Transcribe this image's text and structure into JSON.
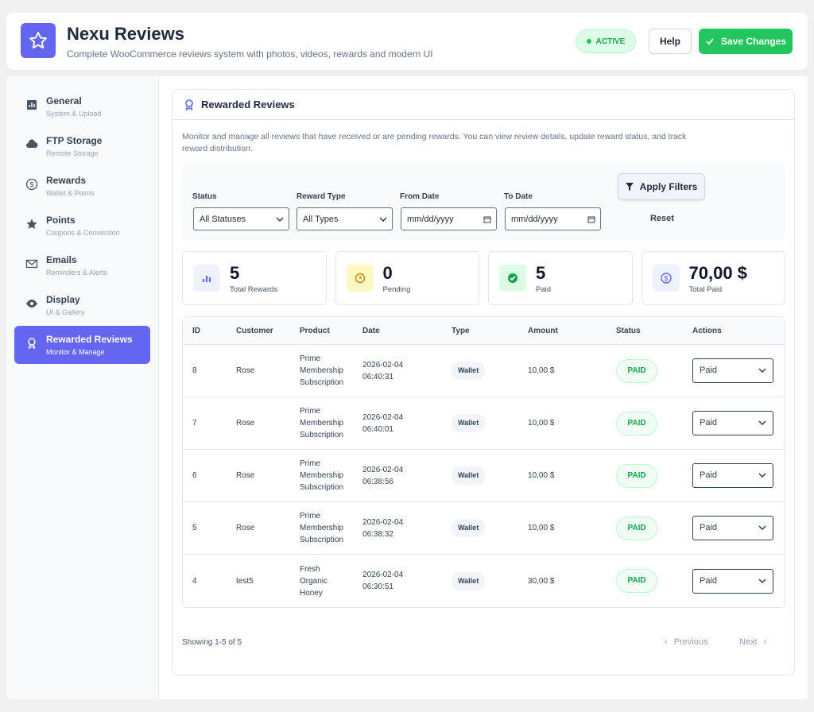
{
  "header": {
    "title": "Nexu Reviews",
    "subtitle": "Complete WooCommerce reviews system with photos, videos, rewards and modern UI",
    "status": "ACTIVE",
    "help": "Help",
    "save": "Save Changes"
  },
  "sidebar": [
    {
      "label": "General",
      "sub": "System & Upload"
    },
    {
      "label": "FTP Storage",
      "sub": "Remote Storage"
    },
    {
      "label": "Rewards",
      "sub": "Wallet & Points"
    },
    {
      "label": "Points",
      "sub": "Coupons & Conversion"
    },
    {
      "label": "Emails",
      "sub": "Reminders & Alerts"
    },
    {
      "label": "Display",
      "sub": "UI & Gallery"
    },
    {
      "label": "Rewarded Reviews",
      "sub": "Monitor & Manage"
    }
  ],
  "panel": {
    "title": "Rewarded Reviews",
    "description": "Monitor and manage all reviews that have received or are pending rewards. You can view review details, update reward status, and track reward distribution.",
    "filters": {
      "status_label": "Status",
      "status_value": "All Statuses",
      "type_label": "Reward Type",
      "type_value": "All Types",
      "from_label": "From Date",
      "from_value": "mm/dd/yyyy",
      "to_label": "To Date",
      "to_value": "mm/dd/yyyy",
      "apply": "Apply Filters",
      "reset": "Reset"
    },
    "stats": [
      {
        "value": 5,
        "label": "Total Rewards"
      },
      {
        "value": 0,
        "label": "Pending"
      },
      {
        "value": 5,
        "label": "Paid"
      },
      {
        "value": "70,00 $",
        "label": "Total Paid"
      }
    ],
    "table": {
      "columns": [
        "ID",
        "Customer",
        "Product",
        "Date",
        "Type",
        "Amount",
        "Status",
        "Actions"
      ],
      "rows": [
        [
          8,
          "Rose",
          "Prime Membership Subscription",
          "2026-02-04 06:40:31",
          "Wallet",
          "10,00 $",
          "PAID",
          "Paid"
        ],
        [
          7,
          "Rose",
          "Prime Membership Subscription",
          "2026-02-04 06:40:01",
          "Wallet",
          "10,00 $",
          "PAID",
          "Paid"
        ],
        [
          6,
          "Rose",
          "Prime Membership Subscription",
          "2026-02-04 06:38:56",
          "Wallet",
          "10,00 $",
          "PAID",
          "Paid"
        ],
        [
          5,
          "Rose",
          "Prime Membership Subscription",
          "2026-02-04 06:38:32",
          "Wallet",
          "10,00 $",
          "PAID",
          "Paid"
        ],
        [
          4,
          "test5",
          "Fresh Organic Honey",
          "2026-02-04 06:30:51",
          "Wallet",
          "30,00 $",
          "PAID",
          "Paid"
        ]
      ]
    },
    "footer": {
      "showing": "Showing 1-5 of 5",
      "previous": "Previous",
      "next": "Next"
    }
  }
}
